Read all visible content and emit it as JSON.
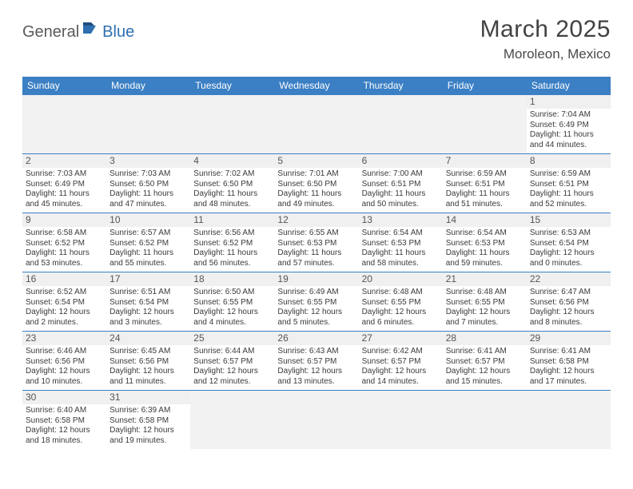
{
  "logo": {
    "part1": "General",
    "part2": "Blue"
  },
  "title": "March 2025",
  "location": "Moroleon, Mexico",
  "colors": {
    "header_bg": "#3b7fc4",
    "header_text": "#ffffff",
    "daynum_bg": "#f0f0f0",
    "rule": "#3b7fc4",
    "body_text": "#3a3a3a",
    "logo_gray": "#5a5a5a",
    "logo_blue": "#2f6fb0"
  },
  "daynames": [
    "Sunday",
    "Monday",
    "Tuesday",
    "Wednesday",
    "Thursday",
    "Friday",
    "Saturday"
  ],
  "weeks": [
    [
      null,
      null,
      null,
      null,
      null,
      null,
      {
        "n": "1",
        "sunrise": "7:04 AM",
        "sunset": "6:49 PM",
        "dl": "11 hours and 44 minutes."
      }
    ],
    [
      {
        "n": "2",
        "sunrise": "7:03 AM",
        "sunset": "6:49 PM",
        "dl": "11 hours and 45 minutes."
      },
      {
        "n": "3",
        "sunrise": "7:03 AM",
        "sunset": "6:50 PM",
        "dl": "11 hours and 47 minutes."
      },
      {
        "n": "4",
        "sunrise": "7:02 AM",
        "sunset": "6:50 PM",
        "dl": "11 hours and 48 minutes."
      },
      {
        "n": "5",
        "sunrise": "7:01 AM",
        "sunset": "6:50 PM",
        "dl": "11 hours and 49 minutes."
      },
      {
        "n": "6",
        "sunrise": "7:00 AM",
        "sunset": "6:51 PM",
        "dl": "11 hours and 50 minutes."
      },
      {
        "n": "7",
        "sunrise": "6:59 AM",
        "sunset": "6:51 PM",
        "dl": "11 hours and 51 minutes."
      },
      {
        "n": "8",
        "sunrise": "6:59 AM",
        "sunset": "6:51 PM",
        "dl": "11 hours and 52 minutes."
      }
    ],
    [
      {
        "n": "9",
        "sunrise": "6:58 AM",
        "sunset": "6:52 PM",
        "dl": "11 hours and 53 minutes."
      },
      {
        "n": "10",
        "sunrise": "6:57 AM",
        "sunset": "6:52 PM",
        "dl": "11 hours and 55 minutes."
      },
      {
        "n": "11",
        "sunrise": "6:56 AM",
        "sunset": "6:52 PM",
        "dl": "11 hours and 56 minutes."
      },
      {
        "n": "12",
        "sunrise": "6:55 AM",
        "sunset": "6:53 PM",
        "dl": "11 hours and 57 minutes."
      },
      {
        "n": "13",
        "sunrise": "6:54 AM",
        "sunset": "6:53 PM",
        "dl": "11 hours and 58 minutes."
      },
      {
        "n": "14",
        "sunrise": "6:54 AM",
        "sunset": "6:53 PM",
        "dl": "11 hours and 59 minutes."
      },
      {
        "n": "15",
        "sunrise": "6:53 AM",
        "sunset": "6:54 PM",
        "dl": "12 hours and 0 minutes."
      }
    ],
    [
      {
        "n": "16",
        "sunrise": "6:52 AM",
        "sunset": "6:54 PM",
        "dl": "12 hours and 2 minutes."
      },
      {
        "n": "17",
        "sunrise": "6:51 AM",
        "sunset": "6:54 PM",
        "dl": "12 hours and 3 minutes."
      },
      {
        "n": "18",
        "sunrise": "6:50 AM",
        "sunset": "6:55 PM",
        "dl": "12 hours and 4 minutes."
      },
      {
        "n": "19",
        "sunrise": "6:49 AM",
        "sunset": "6:55 PM",
        "dl": "12 hours and 5 minutes."
      },
      {
        "n": "20",
        "sunrise": "6:48 AM",
        "sunset": "6:55 PM",
        "dl": "12 hours and 6 minutes."
      },
      {
        "n": "21",
        "sunrise": "6:48 AM",
        "sunset": "6:55 PM",
        "dl": "12 hours and 7 minutes."
      },
      {
        "n": "22",
        "sunrise": "6:47 AM",
        "sunset": "6:56 PM",
        "dl": "12 hours and 8 minutes."
      }
    ],
    [
      {
        "n": "23",
        "sunrise": "6:46 AM",
        "sunset": "6:56 PM",
        "dl": "12 hours and 10 minutes."
      },
      {
        "n": "24",
        "sunrise": "6:45 AM",
        "sunset": "6:56 PM",
        "dl": "12 hours and 11 minutes."
      },
      {
        "n": "25",
        "sunrise": "6:44 AM",
        "sunset": "6:57 PM",
        "dl": "12 hours and 12 minutes."
      },
      {
        "n": "26",
        "sunrise": "6:43 AM",
        "sunset": "6:57 PM",
        "dl": "12 hours and 13 minutes."
      },
      {
        "n": "27",
        "sunrise": "6:42 AM",
        "sunset": "6:57 PM",
        "dl": "12 hours and 14 minutes."
      },
      {
        "n": "28",
        "sunrise": "6:41 AM",
        "sunset": "6:57 PM",
        "dl": "12 hours and 15 minutes."
      },
      {
        "n": "29",
        "sunrise": "6:41 AM",
        "sunset": "6:58 PM",
        "dl": "12 hours and 17 minutes."
      }
    ],
    [
      {
        "n": "30",
        "sunrise": "6:40 AM",
        "sunset": "6:58 PM",
        "dl": "12 hours and 18 minutes."
      },
      {
        "n": "31",
        "sunrise": "6:39 AM",
        "sunset": "6:58 PM",
        "dl": "12 hours and 19 minutes."
      },
      null,
      null,
      null,
      null,
      null
    ]
  ],
  "labels": {
    "sunrise": "Sunrise:",
    "sunset": "Sunset:",
    "daylight": "Daylight:"
  }
}
